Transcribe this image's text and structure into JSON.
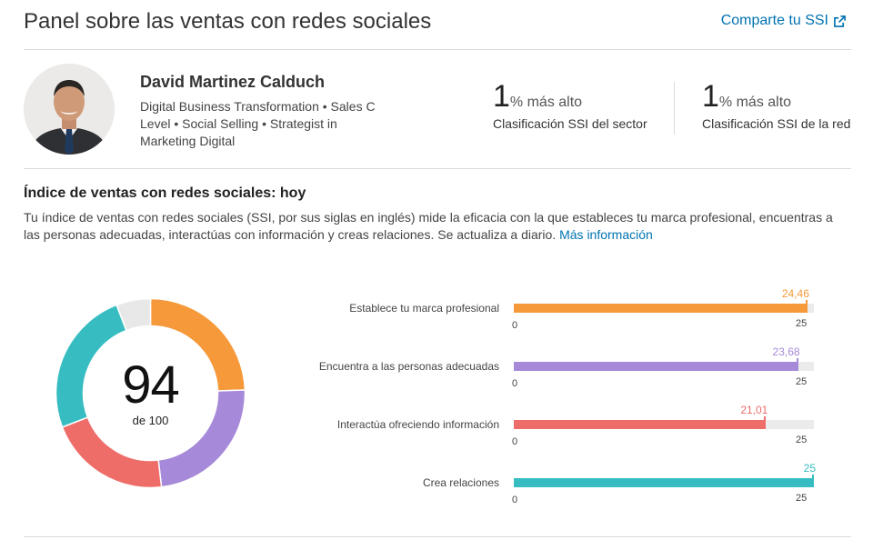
{
  "header": {
    "title": "Panel sobre las ventas con redes sociales",
    "share_label": "Comparte tu SSI",
    "share_icon": "external-link-icon"
  },
  "profile": {
    "name": "David Martinez Calduch",
    "headline": "Digital Business Transformation • Sales C Level • Social Selling • Strategist in Marketing Digital"
  },
  "rankings": [
    {
      "value": "1",
      "suffix": "% más alto",
      "label": "Clasificación SSI del sector"
    },
    {
      "value": "1",
      "suffix": "% más alto",
      "label": "Clasificación SSI de la red"
    }
  ],
  "index": {
    "title": "Índice de ventas con redes sociales: hoy",
    "description": "Tu índice de ventas con redes sociales (SSI, por sus siglas en inglés) mide la eficacia con la que estableces tu marca profesional, encuentras a las personas adecuadas, interactúas con información y creas relaciones. Se actualiza a diario.",
    "more_link": "Más información"
  },
  "score": {
    "value": "94",
    "of_label": "de 100",
    "max": 100
  },
  "colors": {
    "orange": "#f6993b",
    "purple": "#a689d8",
    "red": "#ee6d69",
    "teal": "#37bdc1",
    "remainder": "#e8e8e8",
    "link": "#0073b1"
  },
  "chart_data": {
    "type": "bar",
    "categories": [
      "Establece tu marca profesional",
      "Encuentra a las personas adecuadas",
      "Interactúa ofreciendo información",
      "Crea relaciones"
    ],
    "values": [
      24.46,
      23.68,
      21.01,
      25
    ],
    "value_labels": [
      "24,46",
      "23,68",
      "21,01",
      "25"
    ],
    "colors": [
      "#f6993b",
      "#a689d8",
      "#ee6d69",
      "#37bdc1"
    ],
    "xlim": [
      0,
      25
    ],
    "min_label": "0",
    "max_label": "25"
  }
}
